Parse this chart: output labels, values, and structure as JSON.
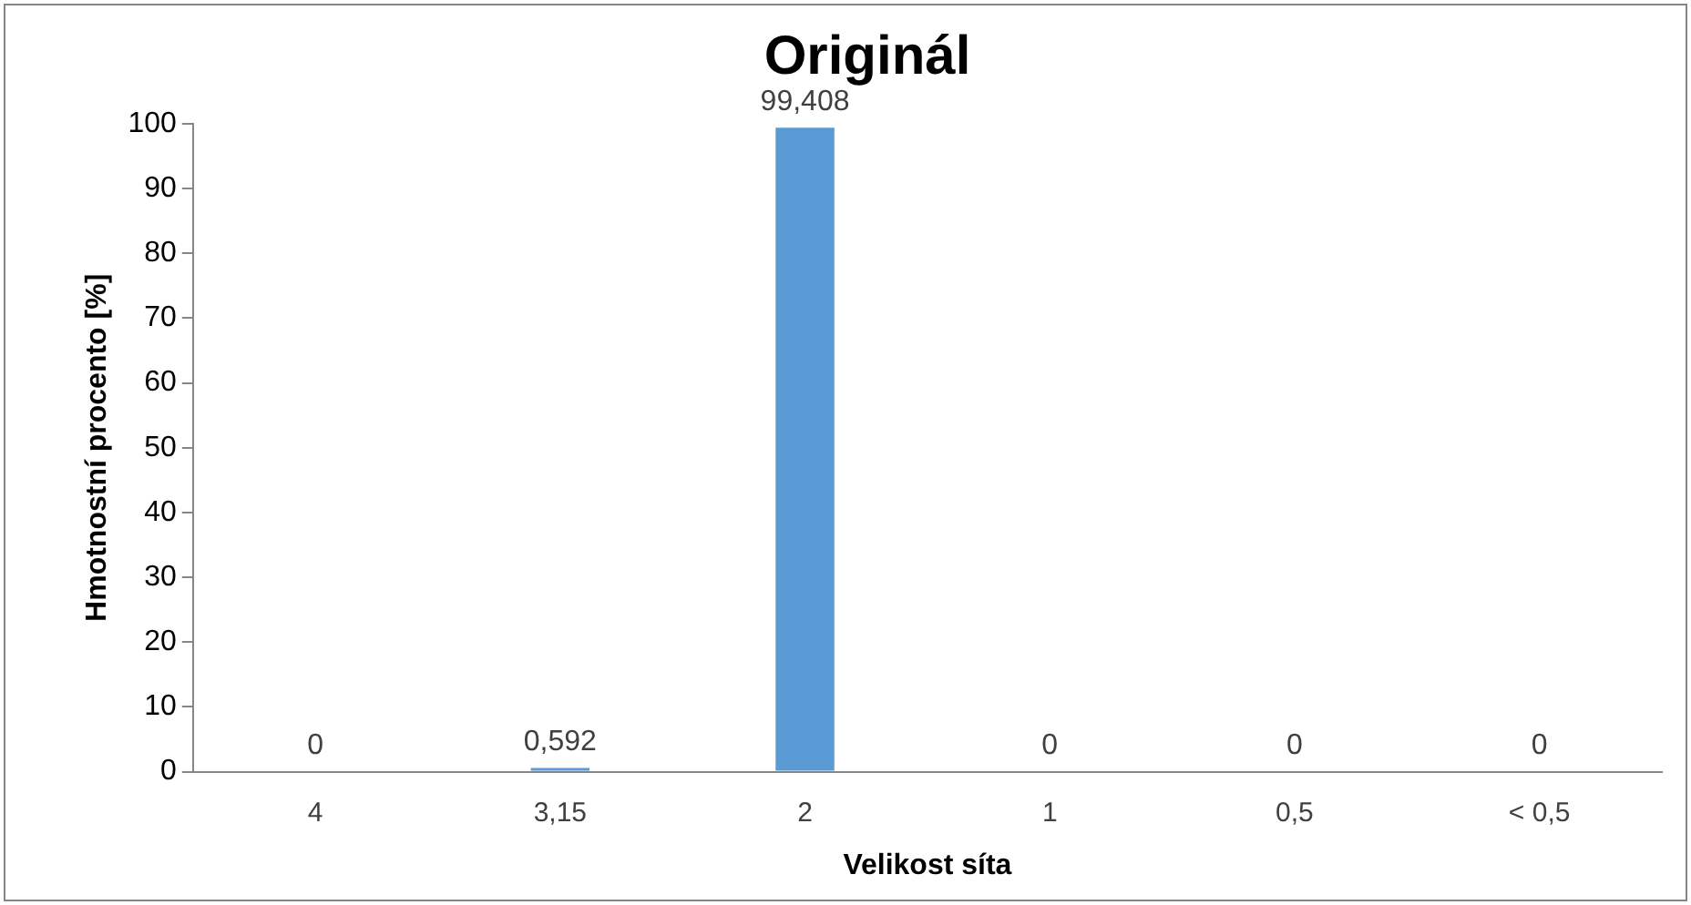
{
  "chart_data": {
    "type": "bar",
    "title": "Originál",
    "xlabel": "Velikost síta",
    "ylabel": "Hmotnostní procento [%]",
    "categories": [
      "4",
      "3,15",
      "2",
      "1",
      "0,5",
      "< 0,5"
    ],
    "values": [
      0,
      0.592,
      99.408,
      0,
      0,
      0
    ],
    "value_labels": [
      "0",
      "0,592",
      "99,408",
      "0",
      "0",
      "0"
    ],
    "color": "#5b9bd5",
    "ylim": [
      0,
      100
    ],
    "yticks": [
      0,
      10,
      20,
      30,
      40,
      50,
      60,
      70,
      80,
      90,
      100
    ],
    "grid": false,
    "legend": false
  }
}
